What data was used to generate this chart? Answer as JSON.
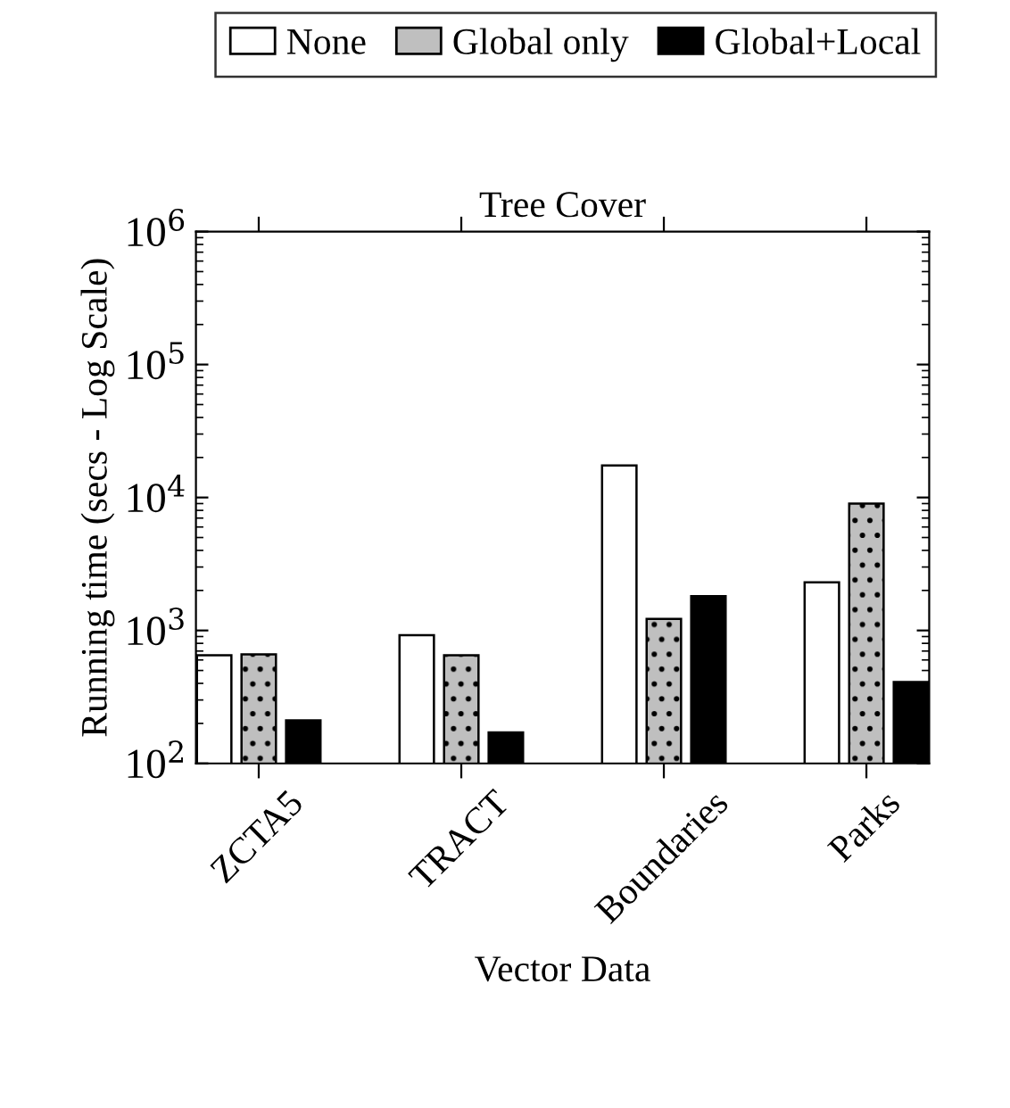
{
  "chart_data": {
    "type": "bar",
    "title": "Tree Cover",
    "xlabel": "Vector Data",
    "ylabel": "Running time (secs - Log Scale)",
    "categories": [
      "ZCTA5",
      "TRACT",
      "Boundaries",
      "Parks"
    ],
    "series": [
      {
        "name": "None",
        "color": "#ffffff",
        "values": [
          650,
          920,
          17400,
          2300
        ]
      },
      {
        "name": "Global only",
        "color": "#bfbfbf",
        "values": [
          660,
          650,
          1220,
          9000
        ]
      },
      {
        "name": "Global+Local",
        "color": "#000000",
        "values": [
          211,
          171,
          1810,
          410
        ]
      }
    ],
    "log": "y",
    "ylim": [
      100,
      1000000
    ],
    "yticks": [
      {
        "value": 100,
        "label": "10$^{2}$"
      },
      {
        "value": 1000,
        "label": "10$^{3}$"
      },
      {
        "value": 10000,
        "label": "10$^{4}$"
      },
      {
        "value": 100000,
        "label": "10$^{5}$"
      },
      {
        "value": 1000000,
        "label": "10$^{6}$"
      }
    ],
    "grid": false,
    "legend": "top"
  }
}
